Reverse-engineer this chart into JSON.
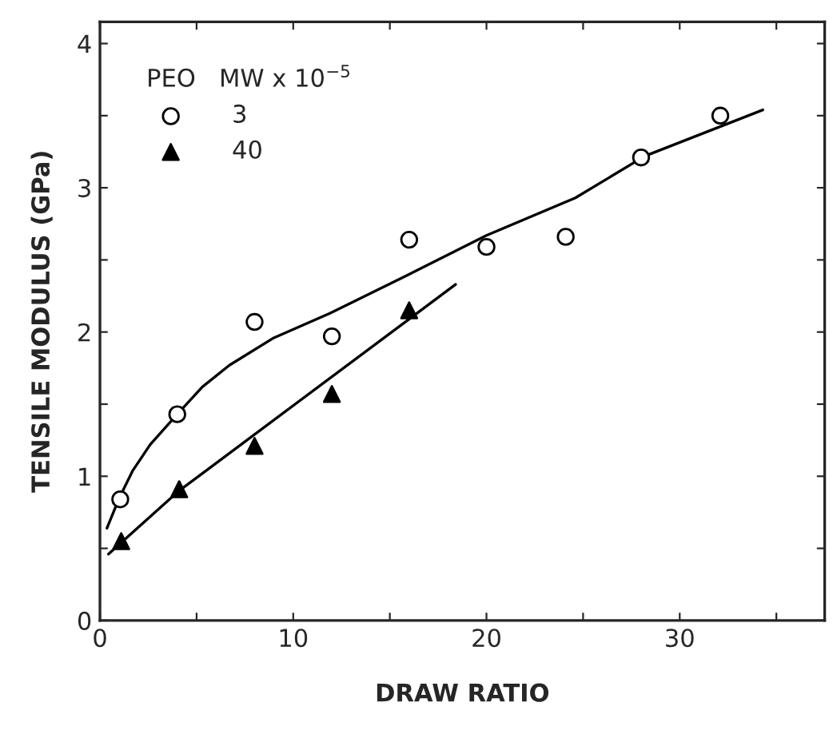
{
  "chart_data": {
    "type": "scatter",
    "xlabel": "DRAW RATIO",
    "ylabel": "TENSILE MODULUS (GPa)",
    "legend_title": "PEO   MW x 10$^{−5}$",
    "xlim": [
      0,
      37.5
    ],
    "ylim": [
      0,
      4.15
    ],
    "xticks": [
      0,
      {
        "value": 5,
        "label": null
      },
      10,
      {
        "value": 15,
        "label": null
      },
      20,
      {
        "value": 25,
        "label": null
      },
      30,
      {
        "value": 35,
        "label": null
      }
    ],
    "yticks": [
      0,
      {
        "value": 0.5,
        "label": null
      },
      1,
      {
        "value": 1.5,
        "label": null
      },
      2,
      {
        "value": 2.5,
        "label": null
      },
      3,
      {
        "value": 3.5,
        "label": null
      },
      4
    ],
    "grid": false,
    "legend": "top left",
    "series": [
      {
        "name": "3",
        "marker": "circle",
        "color": "#000000",
        "x": [
          1.05,
          4.0,
          8.0,
          12.0,
          16.0,
          20.0,
          24.1,
          28.0,
          32.1
        ],
        "values": [
          0.84,
          1.43,
          2.07,
          1.97,
          2.64,
          2.59,
          2.66,
          3.21,
          3.5
        ]
      },
      {
        "name": "40",
        "marker": "triangle",
        "color": "#000000",
        "x": [
          1.1,
          4.1,
          8.0,
          12.0,
          16.0
        ],
        "values": [
          0.55,
          0.91,
          1.21,
          1.57,
          2.15
        ]
      },
      {
        "type": "line",
        "marker": "none",
        "line_style": "solid",
        "color": "#000000",
        "x": [
          0.36,
          1.0,
          1.7,
          2.6,
          4.0,
          5.3,
          6.7,
          9.0,
          11.9,
          16.3,
          20.0,
          24.6,
          28.2,
          34.3
        ],
        "values": [
          0.64,
          0.85,
          1.04,
          1.22,
          1.43,
          1.62,
          1.77,
          1.96,
          2.13,
          2.42,
          2.67,
          2.93,
          3.22,
          3.54
        ]
      },
      {
        "type": "line",
        "marker": "none",
        "line_style": "solid",
        "color": "#000000",
        "x": [
          0.44,
          4.1,
          18.4
        ],
        "values": [
          0.46,
          0.9,
          2.33
        ]
      }
    ]
  }
}
